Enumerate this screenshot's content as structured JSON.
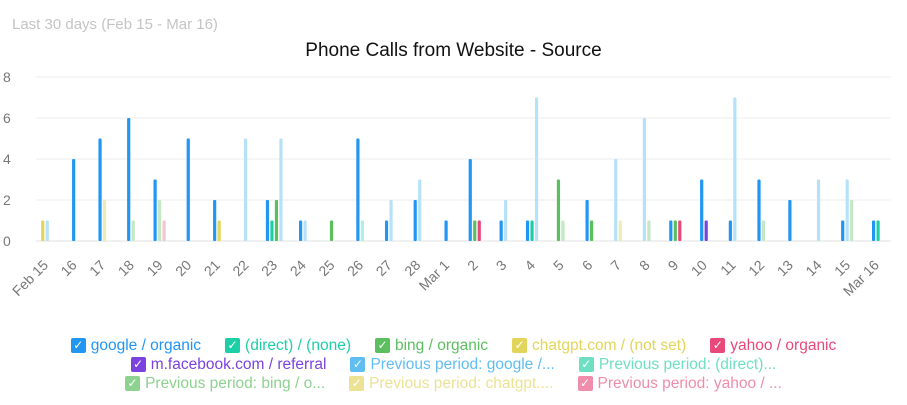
{
  "subtitle": "Last 30 days (Feb 15 - Mar 16)",
  "chart_data": {
    "type": "bar",
    "title": "Phone Calls from Website - Source",
    "xlabel": "",
    "ylabel": "",
    "ylim": [
      0,
      8
    ],
    "yticks": [
      0,
      2,
      4,
      6,
      8
    ],
    "grid": true,
    "legend_position": "bottom",
    "categories": [
      "Feb 15",
      "16",
      "17",
      "18",
      "19",
      "20",
      "21",
      "22",
      "23",
      "24",
      "25",
      "26",
      "27",
      "28",
      "Mar 1",
      "2",
      "3",
      "4",
      "5",
      "6",
      "7",
      "8",
      "9",
      "10",
      "11",
      "12",
      "13",
      "14",
      "15",
      "Mar 16"
    ],
    "series": [
      {
        "name": "google / organic",
        "color": "#2196f3",
        "period": "current",
        "values": [
          0,
          4,
          5,
          6,
          3,
          5,
          2,
          0,
          2,
          1,
          0,
          5,
          1,
          2,
          1,
          4,
          1,
          1,
          0,
          2,
          0,
          0,
          1,
          3,
          1,
          3,
          2,
          0,
          1,
          1
        ]
      },
      {
        "name": "(direct) / (none)",
        "color": "#1dcfa7",
        "period": "current",
        "values": [
          0,
          0,
          0,
          0,
          0,
          0,
          0,
          0,
          1,
          0,
          0,
          0,
          0,
          0,
          0,
          0,
          0,
          1,
          0,
          0,
          0,
          0,
          0,
          0,
          0,
          0,
          0,
          0,
          0,
          1
        ]
      },
      {
        "name": "bing / organic",
        "color": "#5cbf5f",
        "period": "current",
        "values": [
          0,
          0,
          0,
          0,
          0,
          0,
          0,
          0,
          2,
          0,
          1,
          0,
          0,
          0,
          0,
          1,
          0,
          0,
          3,
          1,
          0,
          0,
          1,
          0,
          0,
          0,
          0,
          0,
          0,
          0
        ]
      },
      {
        "name": "chatgpt.com / (not set)",
        "color": "#e3d55a",
        "period": "current",
        "values": [
          1,
          0,
          0,
          0,
          0,
          0,
          1,
          0,
          0,
          0,
          0,
          0,
          0,
          0,
          0,
          0,
          0,
          0,
          0,
          0,
          0,
          0,
          0,
          0,
          0,
          0,
          0,
          0,
          0,
          0
        ]
      },
      {
        "name": "yahoo / organic",
        "color": "#e8487a",
        "period": "current",
        "values": [
          0,
          0,
          0,
          0,
          0,
          0,
          0,
          0,
          0,
          0,
          0,
          0,
          0,
          0,
          0,
          1,
          0,
          0,
          0,
          0,
          0,
          0,
          1,
          0,
          0,
          0,
          0,
          0,
          0,
          0
        ]
      },
      {
        "name": "m.facebook.com / referral",
        "color": "#7b42e0",
        "period": "current",
        "values": [
          0,
          0,
          0,
          0,
          0,
          0,
          0,
          0,
          0,
          0,
          0,
          0,
          0,
          0,
          0,
          0,
          0,
          0,
          0,
          0,
          0,
          0,
          0,
          1,
          0,
          0,
          0,
          0,
          0,
          0
        ]
      },
      {
        "name": "Previous period: google /...",
        "color": "#b6e1f8",
        "period": "previous",
        "values": [
          1,
          0,
          0,
          0,
          0,
          0,
          0,
          5,
          5,
          1,
          0,
          0,
          2,
          3,
          0,
          0,
          2,
          7,
          0,
          0,
          4,
          6,
          0,
          0,
          7,
          0,
          0,
          3,
          3,
          0
        ]
      },
      {
        "name": "Previous period: (direct)...",
        "color": "#b3efe0",
        "period": "previous",
        "values": [
          0,
          0,
          0,
          0,
          0,
          0,
          0,
          0,
          0,
          0,
          0,
          1,
          0,
          0,
          0,
          0,
          0,
          0,
          0,
          0,
          0,
          0,
          0,
          0,
          0,
          0,
          0,
          0,
          0,
          0
        ]
      },
      {
        "name": "Previous period: bing / o...",
        "color": "#c3e8c4",
        "period": "previous",
        "values": [
          0,
          0,
          0,
          1,
          2,
          0,
          0,
          0,
          0,
          0,
          0,
          0,
          0,
          0,
          0,
          0,
          0,
          0,
          1,
          0,
          0,
          1,
          0,
          0,
          0,
          1,
          0,
          0,
          2,
          0
        ]
      },
      {
        "name": "Previous period: chatgpt....",
        "color": "#eee9b5",
        "period": "previous",
        "values": [
          0,
          0,
          2,
          0,
          0,
          0,
          0,
          0,
          0,
          0,
          0,
          0,
          0,
          0,
          0,
          0,
          0,
          0,
          0,
          0,
          1,
          0,
          0,
          0,
          0,
          0,
          0,
          0,
          0,
          0
        ]
      },
      {
        "name": "Previous period: yahoo / ...",
        "color": "#f7c4d1",
        "period": "previous",
        "values": [
          0,
          0,
          0,
          0,
          1,
          0,
          0,
          0,
          0,
          0,
          0,
          0,
          0,
          0,
          0,
          0,
          0,
          0,
          0,
          0,
          0,
          0,
          0,
          0,
          0,
          0,
          0,
          0,
          0,
          0
        ]
      }
    ]
  },
  "legend": {
    "rows": [
      [
        {
          "label": "google / organic",
          "color": "#2196f3"
        },
        {
          "label": "(direct) / (none)",
          "color": "#1dcfa7"
        },
        {
          "label": "bing / organic",
          "color": "#5cbf5f"
        },
        {
          "label": "chatgpt.com / (not set)",
          "color": "#e3d55a"
        },
        {
          "label": "yahoo / organic",
          "color": "#e8487a"
        }
      ],
      [
        {
          "label": "m.facebook.com / referral",
          "color": "#7b42e0"
        },
        {
          "label": "Previous period: google /...",
          "color": "#5fbdf2"
        },
        {
          "label": "Previous period: (direct)...",
          "color": "#6edfc3"
        }
      ],
      [
        {
          "label": "Previous period: bing / o...",
          "color": "#8dd28f"
        },
        {
          "label": "Previous period: chatgpt....",
          "color": "#ebe294"
        },
        {
          "label": "Previous period: yahoo / ...",
          "color": "#ef8daa"
        }
      ]
    ]
  }
}
